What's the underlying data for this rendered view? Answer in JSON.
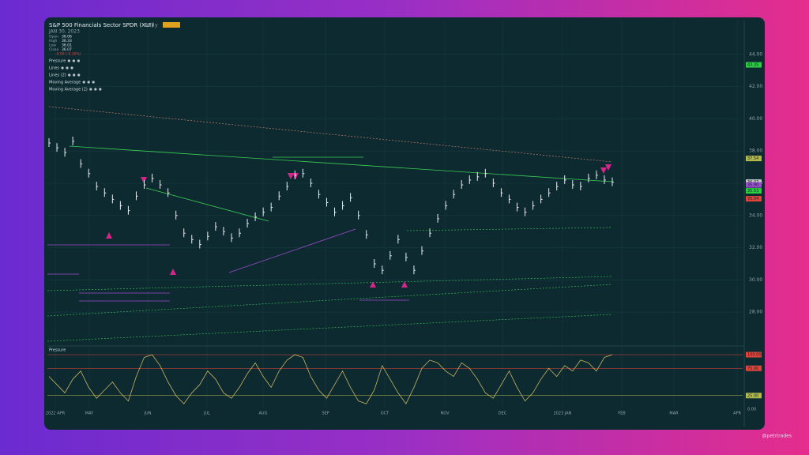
{
  "header": {
    "title": "S&P 500 Financials Sector SPDR (XLF)",
    "interval": "Daily",
    "date": "JAN 30, 2023",
    "ohlc": [
      {
        "label": "Open",
        "value": 36.06
      },
      {
        "label": "High",
        "value": 36.33
      },
      {
        "label": "Low",
        "value": 36.01
      },
      {
        "label": "Close",
        "value": 36.07
      }
    ],
    "change": "-0.06 (-0.16%)"
  },
  "indicators": [
    "Pressure",
    "Lines",
    "Lines (2)",
    "Moving Average",
    "Moving Average (2)"
  ],
  "chart_data": {
    "type": "bar-ohlc",
    "values": [
      38.5,
      38.2,
      37.9,
      38.6,
      37.2,
      36.6,
      35.8,
      35.4,
      35.0,
      34.6,
      34.3,
      35.2,
      35.9,
      36.3,
      35.9,
      35.4,
      34.0,
      32.9,
      32.5,
      32.2,
      32.7,
      33.3,
      33.0,
      32.6,
      32.9,
      33.5,
      33.9,
      34.2,
      34.5,
      35.2,
      35.8,
      36.5,
      36.6,
      36.0,
      35.3,
      34.8,
      34.2,
      34.6,
      35.1,
      34.0,
      32.8,
      31.0,
      30.6,
      31.5,
      32.5,
      31.4,
      30.6,
      31.8,
      32.9,
      33.8,
      34.6,
      35.3,
      35.9,
      36.2,
      36.4,
      36.6,
      36.0,
      35.4,
      35.0,
      34.5,
      34.2,
      34.6,
      35.0,
      35.4,
      35.8,
      36.2,
      35.9,
      35.8,
      36.3,
      36.5,
      36.2,
      36.07
    ],
    "color": "#e8eef0",
    "ylim": [
      26,
      46
    ],
    "yticks": [
      {
        "value": 28,
        "label": "28.00"
      },
      {
        "value": 30,
        "label": "30.00"
      },
      {
        "value": 32,
        "label": "32.00"
      },
      {
        "value": 34,
        "label": "34.00"
      },
      {
        "value": 36,
        "label": "36.00"
      },
      {
        "value": 38,
        "label": "38.00"
      },
      {
        "value": 40,
        "label": "40.00"
      },
      {
        "value": 42,
        "label": "42.00"
      },
      {
        "value": 44,
        "label": "44.00"
      }
    ],
    "price_markers": [
      {
        "value": 43.35,
        "color": "#2ecc40"
      },
      {
        "value": 37.54,
        "color": "#b5b84a"
      },
      {
        "value": 36.07,
        "color": "#c9c9c9"
      },
      {
        "value": 35.9,
        "label": "35.90",
        "color": "#9b4dca"
      },
      {
        "value": 35.53,
        "color": "#2ecc40"
      },
      {
        "value": 35.04,
        "color": "#e0443a"
      }
    ],
    "time_labels": [
      "2022 APR",
      "MAY",
      "JUN",
      "JUL",
      "AUG",
      "SEP",
      "OCT",
      "NOV",
      "DEC",
      "2023 JAN",
      "FEB",
      "MAR",
      "APR"
    ],
    "grid": true
  },
  "pressure": {
    "name": "Pressure",
    "color": "#c8b560",
    "values": [
      60,
      45,
      30,
      55,
      70,
      40,
      20,
      35,
      50,
      30,
      15,
      60,
      95,
      100,
      80,
      50,
      25,
      10,
      30,
      45,
      70,
      55,
      30,
      20,
      40,
      65,
      85,
      60,
      40,
      70,
      90,
      100,
      95,
      60,
      35,
      20,
      45,
      70,
      40,
      15,
      10,
      35,
      80,
      55,
      30,
      10,
      40,
      75,
      90,
      85,
      70,
      60,
      85,
      75,
      55,
      30,
      20,
      45,
      70,
      40,
      15,
      30,
      55,
      75,
      60,
      80,
      70,
      90,
      85,
      70,
      95,
      100
    ],
    "ylim": [
      0,
      100
    ],
    "levels": [
      {
        "value": 100,
        "label": "100.00",
        "color": "#e0443a"
      },
      {
        "value": 75,
        "label": "75.00",
        "color": "#e0443a"
      },
      {
        "value": 25,
        "label": "25.00",
        "color": "#b5b84a"
      },
      {
        "value": 0,
        "label": "0.00"
      }
    ]
  },
  "watermark": "@petrtrades"
}
